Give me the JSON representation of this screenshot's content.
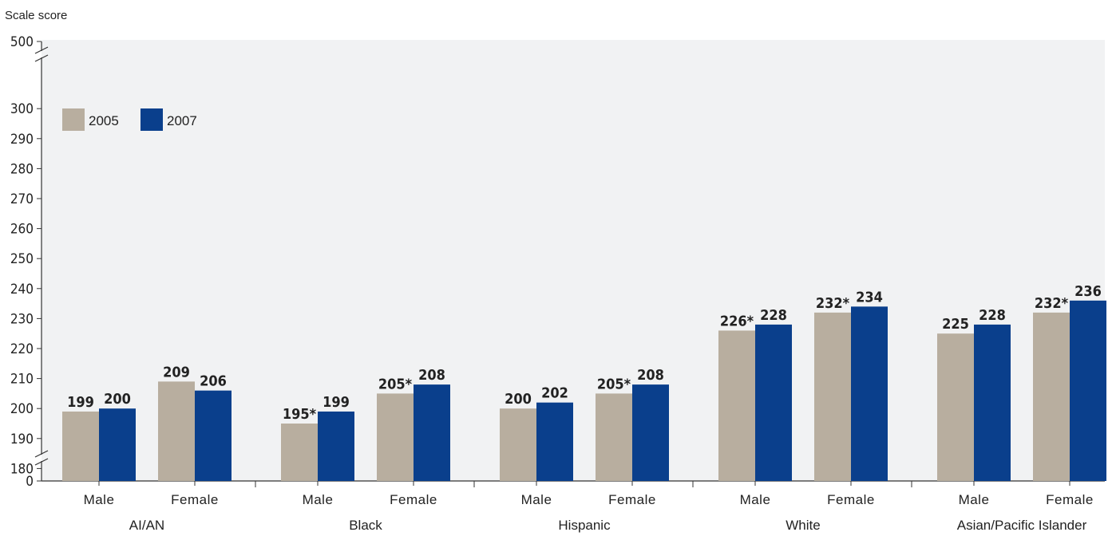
{
  "chart_data": {
    "type": "bar",
    "ylabel": "Scale score",
    "y_ticks": [
      "0",
      "180",
      "190",
      "200",
      "210",
      "220",
      "230",
      "240",
      "250",
      "260",
      "270",
      "280",
      "290",
      "300",
      "500"
    ],
    "ylim": [
      175,
      305
    ],
    "axis_break": true,
    "legend_position": "top-left",
    "colors": {
      "2005": "#b8ae9f",
      "2007": "#0a3f8c",
      "plot_bg": "#f1f2f3"
    },
    "groups": [
      {
        "name": "AI/AN",
        "categories": [
          {
            "name": "Male",
            "values": [
              199,
              200
            ],
            "labels": [
              "199",
              "200"
            ]
          },
          {
            "name": "Female",
            "values": [
              209,
              206
            ],
            "labels": [
              "209",
              "206"
            ]
          }
        ]
      },
      {
        "name": "Black",
        "categories": [
          {
            "name": "Male",
            "values": [
              195,
              199
            ],
            "labels": [
              "195*",
              "199"
            ]
          },
          {
            "name": "Female",
            "values": [
              205,
              208
            ],
            "labels": [
              "205*",
              "208"
            ]
          }
        ]
      },
      {
        "name": "Hispanic",
        "categories": [
          {
            "name": "Male",
            "values": [
              200,
              202
            ],
            "labels": [
              "200",
              "202"
            ]
          },
          {
            "name": "Female",
            "values": [
              205,
              208
            ],
            "labels": [
              "205*",
              "208"
            ]
          }
        ]
      },
      {
        "name": "White",
        "categories": [
          {
            "name": "Male",
            "values": [
              226,
              228
            ],
            "labels": [
              "226*",
              "228"
            ]
          },
          {
            "name": "Female",
            "values": [
              232,
              234
            ],
            "labels": [
              "232*",
              "234"
            ]
          }
        ]
      },
      {
        "name": "Asian/Pacific Islander",
        "categories": [
          {
            "name": "Male",
            "values": [
              225,
              228
            ],
            "labels": [
              "225",
              "228"
            ]
          },
          {
            "name": "Female",
            "values": [
              232,
              236
            ],
            "labels": [
              "232*",
              "236"
            ]
          }
        ]
      }
    ],
    "series": [
      {
        "name": "2005"
      },
      {
        "name": "2007"
      }
    ]
  }
}
